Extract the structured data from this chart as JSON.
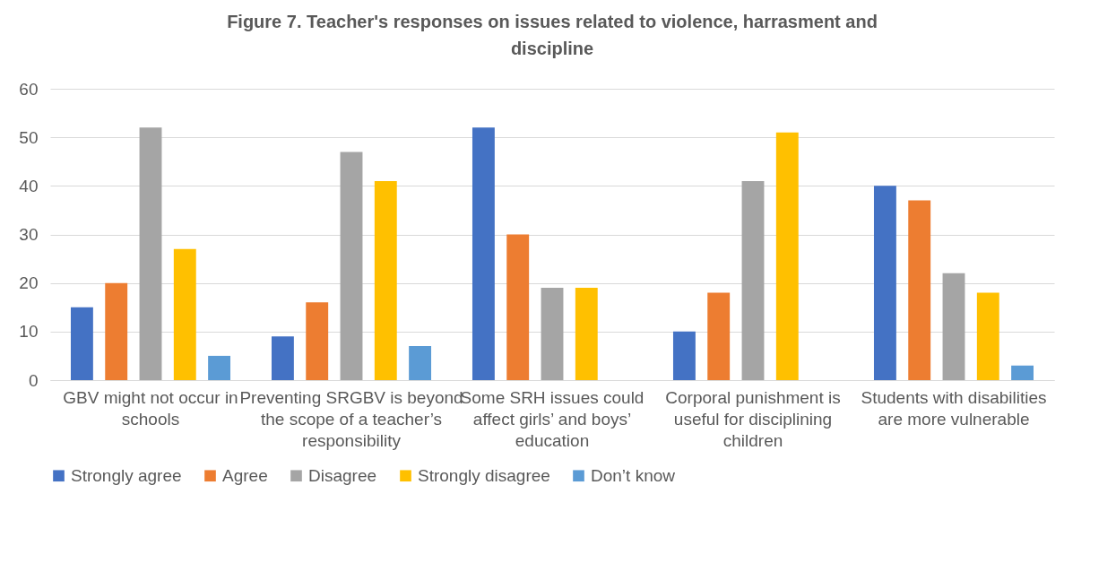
{
  "chart_data": {
    "type": "bar",
    "title": "Figure 7. Teacher's responses on issues related to violence, harrasment and discipline",
    "categories": [
      "GBV might not occur in schools",
      "Preventing SRGBV is beyond the scope of a teacher’s responsibility",
      "Some SRH issues could affect girls’ and boys’ education",
      "Corporal punishment is useful for disciplining children",
      "Students with disabilities are more vulnerable"
    ],
    "series": [
      {
        "name": "Strongly agree",
        "color": "#4472c4",
        "values": [
          15,
          9,
          52,
          10,
          40
        ]
      },
      {
        "name": "Agree",
        "color": "#ed7d31",
        "values": [
          20,
          16,
          30,
          18,
          37
        ]
      },
      {
        "name": "Disagree",
        "color": "#a5a5a5",
        "values": [
          52,
          47,
          19,
          41,
          22
        ]
      },
      {
        "name": "Strongly disagree",
        "color": "#ffc000",
        "values": [
          27,
          41,
          19,
          51,
          18
        ]
      },
      {
        "name": "Don’t know",
        "color": "#5b9bd5",
        "values": [
          5,
          7,
          null,
          null,
          3
        ]
      }
    ],
    "ylim": [
      0,
      60
    ],
    "yticks": [
      0,
      10,
      20,
      30,
      40,
      50,
      60
    ],
    "grid": "y",
    "legend": "bottom"
  }
}
